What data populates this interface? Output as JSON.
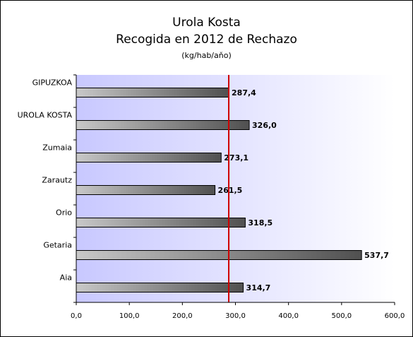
{
  "chart_data": {
    "type": "bar",
    "orientation": "horizontal",
    "title": "Urola Kosta",
    "subtitle": "Recogida en 2012 de Rechazo",
    "units": "(kg/hab/aňo)",
    "categories": [
      "GIPUZKOA",
      "UROLA KOSTA",
      "Zumaia",
      "Zarautz",
      "Orio",
      "Getaria",
      "Aia"
    ],
    "values": [
      287.4,
      326.0,
      273.1,
      261.5,
      318.5,
      537.7,
      314.7
    ],
    "value_labels": [
      "287,4",
      "326,0",
      "273,1",
      "261,5",
      "318,5",
      "537,7",
      "314,7"
    ],
    "xlim": [
      0,
      600
    ],
    "x_ticks": [
      0,
      100,
      200,
      300,
      400,
      500,
      600
    ],
    "x_tick_labels": [
      "0,0",
      "100,0",
      "200,0",
      "300,0",
      "400,0",
      "500,0",
      "600,0"
    ],
    "reference_line": 287.4,
    "reference_line_color": "#d00000",
    "bar_gradient": [
      "#c8c8c8",
      "#505050"
    ],
    "background_gradient": [
      "#c8c8ff",
      "#ffffff"
    ],
    "grid": false
  }
}
